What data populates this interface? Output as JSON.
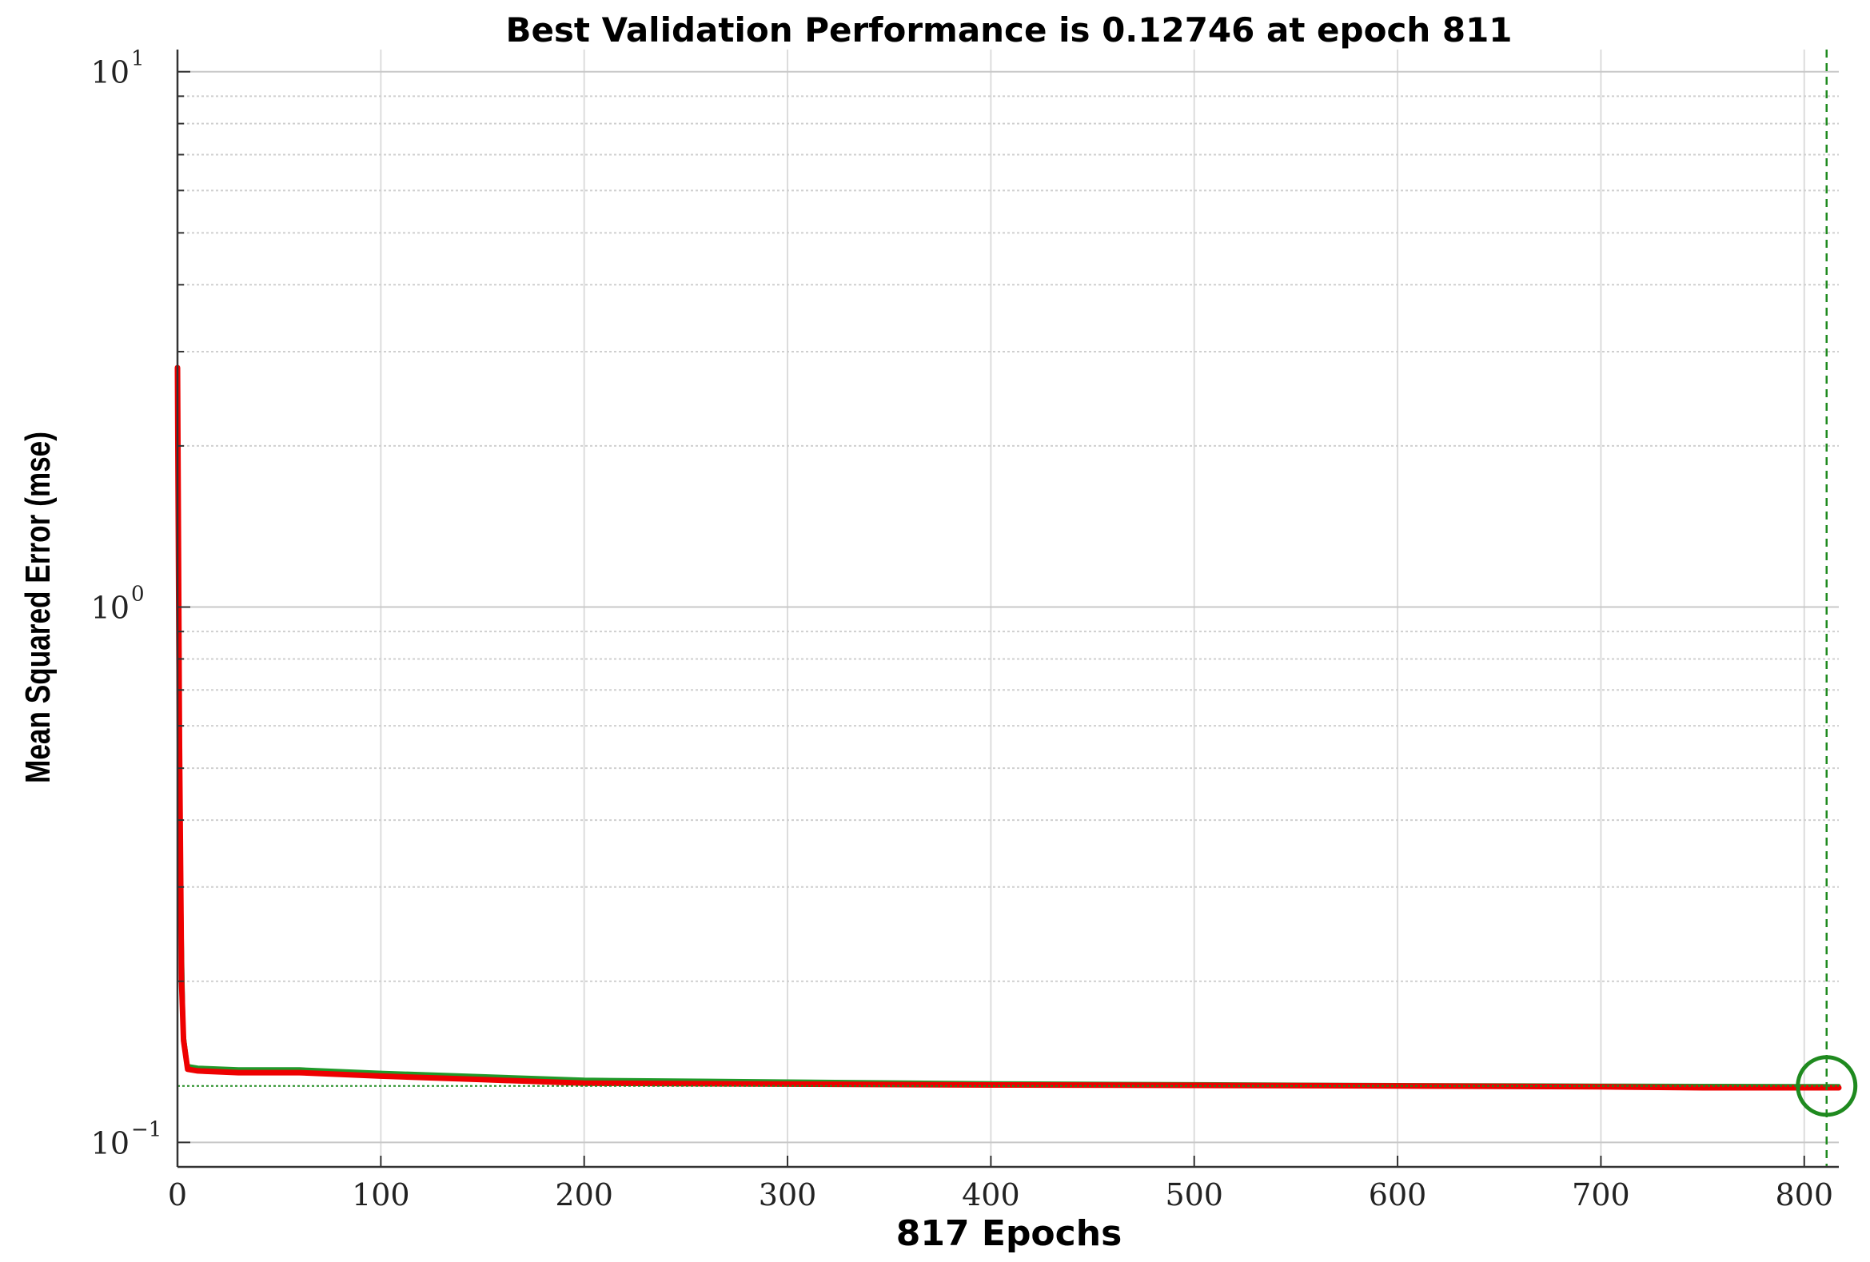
{
  "chart_data": {
    "type": "line",
    "title": "Best Validation Performance is 0.12746 at epoch 811",
    "xlabel": "817 Epochs",
    "ylabel": "Mean Squared Error  (mse)",
    "xlim": [
      0,
      817
    ],
    "ylim": [
      0.09,
      11
    ],
    "y_scale": "log",
    "x_ticks": [
      0,
      100,
      200,
      300,
      400,
      500,
      600,
      700,
      800
    ],
    "y_ticks": [
      {
        "value": 0.1,
        "base": "10",
        "exp": "−1"
      },
      {
        "value": 1,
        "base": "10",
        "exp": "0"
      },
      {
        "value": 10,
        "base": "10",
        "exp": "1"
      }
    ],
    "grid": true,
    "best": {
      "epoch": 811,
      "value": 0.12746
    },
    "series": [
      {
        "color": "#2f7fd6",
        "x": [
          0,
          1,
          2,
          3,
          5,
          10,
          30,
          60,
          100,
          150,
          200,
          300,
          400,
          500,
          600,
          700,
          750,
          800,
          811,
          817
        ],
        "y": [
          2.8,
          0.6,
          0.25,
          0.16,
          0.138,
          0.137,
          0.136,
          0.136,
          0.134,
          0.132,
          0.13,
          0.129,
          0.128,
          0.128,
          0.1275,
          0.127,
          0.1265,
          0.1265,
          0.1265,
          0.1265
        ]
      },
      {
        "color": "#1f9a2a",
        "x": [
          0,
          1,
          2,
          3,
          5,
          10,
          30,
          60,
          100,
          150,
          200,
          300,
          400,
          500,
          600,
          700,
          750,
          800,
          811,
          817
        ],
        "y": [
          2.8,
          0.6,
          0.26,
          0.16,
          0.139,
          0.138,
          0.137,
          0.137,
          0.135,
          0.133,
          0.131,
          0.13,
          0.129,
          0.1285,
          0.128,
          0.1277,
          0.1276,
          0.1275,
          0.12746,
          0.1275
        ]
      },
      {
        "color": "#ee0000",
        "x": [
          0,
          1,
          2,
          3,
          5,
          10,
          30,
          60,
          100,
          150,
          200,
          300,
          400,
          500,
          600,
          700,
          750,
          800,
          811,
          817
        ],
        "y": [
          2.8,
          0.55,
          0.2,
          0.155,
          0.137,
          0.136,
          0.135,
          0.135,
          0.133,
          0.131,
          0.129,
          0.1285,
          0.128,
          0.1278,
          0.1275,
          0.127,
          0.1265,
          0.1265,
          0.1265,
          0.1265
        ]
      }
    ]
  }
}
